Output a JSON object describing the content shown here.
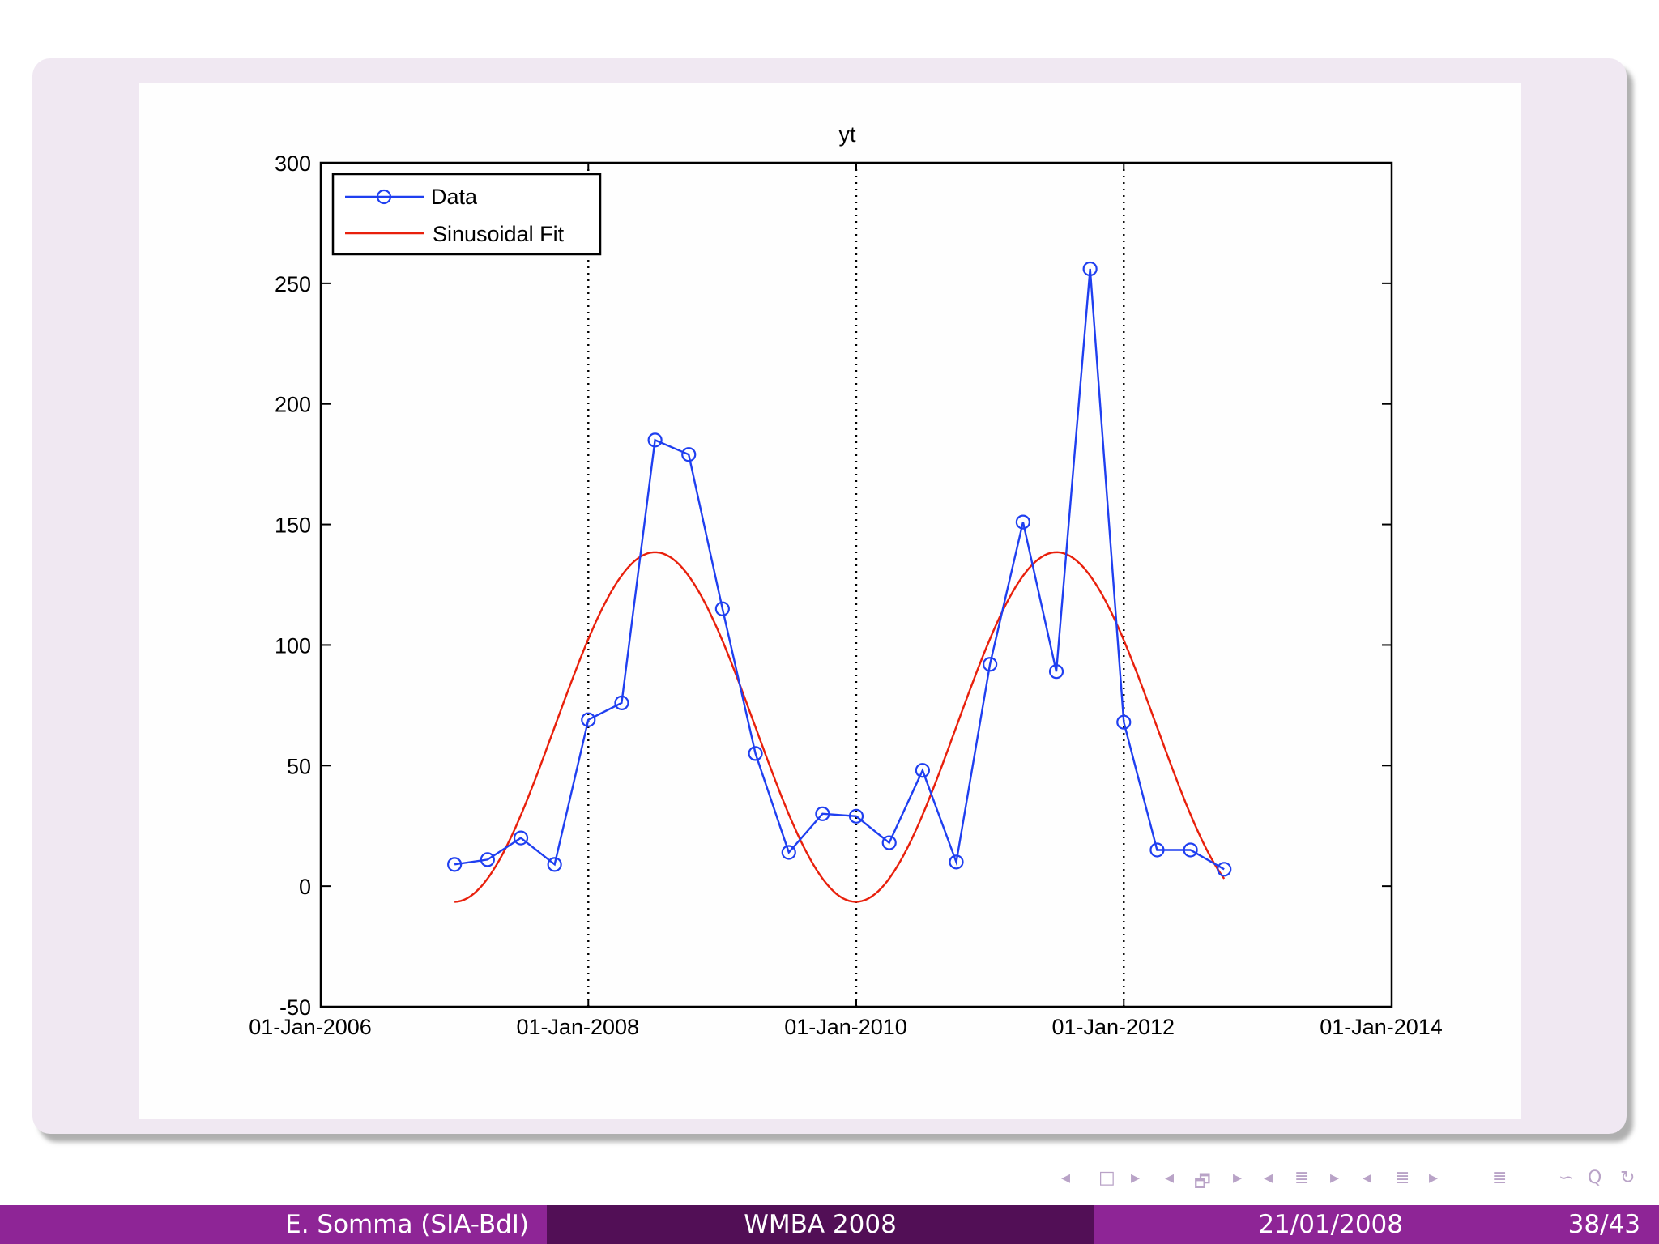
{
  "chart_data": {
    "type": "line",
    "title": "yt",
    "xlabel": "",
    "ylabel": "",
    "x_tick_labels": [
      "01-Jan-2006",
      "01-Jan-2008",
      "01-Jan-2010",
      "01-Jan-2012",
      "01-Jan-2014"
    ],
    "y_tick_labels": [
      "-50",
      "0",
      "50",
      "100",
      "150",
      "200",
      "250",
      "300"
    ],
    "xlim": [
      "2006-01-01",
      "2014-01-01"
    ],
    "ylim": [
      -50,
      300
    ],
    "grid": "vertical dotted lines at x ticks",
    "legend_position": "top-left",
    "series": [
      {
        "name": "Data",
        "color": "#1f3ff0",
        "marker": "circle",
        "x": [
          "2007-01-01",
          "2007-04-01",
          "2007-07-01",
          "2007-10-01",
          "2008-01-01",
          "2008-04-01",
          "2008-07-01",
          "2008-10-01",
          "2009-01-01",
          "2009-04-01",
          "2009-07-01",
          "2009-10-01",
          "2010-01-01",
          "2010-04-01",
          "2010-07-01",
          "2010-10-01",
          "2011-01-01",
          "2011-04-01",
          "2011-07-01",
          "2011-10-01",
          "2012-01-01",
          "2012-04-01",
          "2012-07-01",
          "2012-10-01"
        ],
        "y": [
          9,
          11,
          20,
          9,
          69,
          76,
          185,
          179,
          115,
          55,
          14,
          30,
          29,
          18,
          48,
          10,
          92,
          151,
          89,
          256,
          68,
          15,
          15,
          7
        ]
      },
      {
        "name": "Sinusoidal Fit",
        "color": "#e8200c",
        "x_range": [
          "2007-01-01",
          "2012-10-01"
        ],
        "mean": 66,
        "amplitude": 72.5,
        "period_years": 3,
        "peak_at": "2008-07-01"
      }
    ]
  },
  "navigation": {
    "color": "#b9a3c7",
    "symbols": [
      "◂",
      "□",
      "▸",
      "◂",
      "🗗",
      "▸",
      "◂",
      "≣",
      "▸",
      "◂",
      "≣",
      "▸",
      "≣",
      "∽",
      "Q",
      "↻"
    ],
    "icons": [
      "prev-frame-arrow-icon",
      "frame-icon",
      "next-frame-arrow-icon",
      "prev-subsection-arrow-icon",
      "subsection-icon",
      "next-subsection-arrow-icon",
      "prev-section-arrow-icon",
      "section-icon",
      "next-section-arrow-icon",
      "prev-document-arrow-icon",
      "document-icon",
      "next-document-arrow-icon",
      "align-icon",
      "back-icon",
      "search-icon",
      "refresh-icon"
    ]
  },
  "footer": {
    "author": "E. Somma (SIA-BdI)",
    "conference": "WMBA 2008",
    "date": "21/01/2008",
    "page": "38/43",
    "colors": {
      "light": "#8e2596",
      "dark": "#520f56"
    }
  }
}
